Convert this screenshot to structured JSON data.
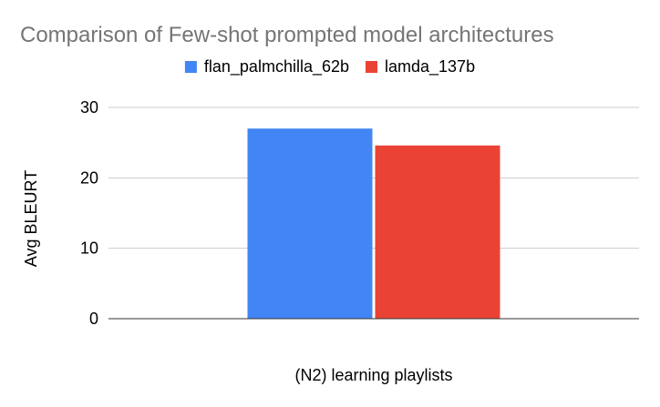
{
  "chart_data": {
    "type": "bar",
    "title": "Comparison of Few-shot prompted model architectures",
    "categories": [
      "(N2) learning playlists"
    ],
    "series": [
      {
        "name": "flan_palmchilla_62b",
        "values": [
          27.0
        ],
        "color": "#4285F4"
      },
      {
        "name": "lamda_137b",
        "values": [
          24.6
        ],
        "color": "#EA4335"
      }
    ],
    "xlabel": "(N2) learning playlists",
    "ylabel": "Avg BLEURT",
    "ylim": [
      0,
      30
    ],
    "yticks": [
      "0",
      "10",
      "20",
      "30"
    ],
    "grid": true,
    "legend_position": "top-center"
  }
}
